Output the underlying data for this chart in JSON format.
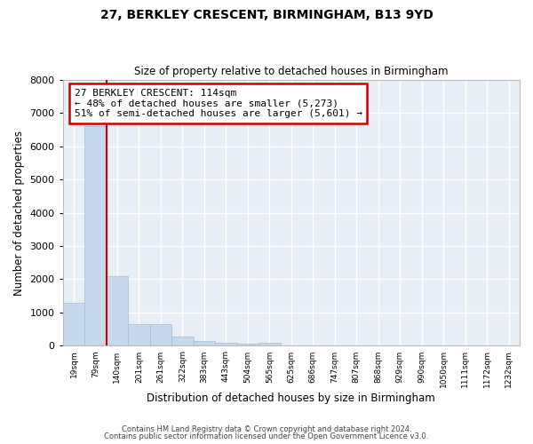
{
  "title_line1": "27, BERKLEY CRESCENT, BIRMINGHAM, B13 9YD",
  "title_line2": "Size of property relative to detached houses in Birmingham",
  "xlabel": "Distribution of detached houses by size in Birmingham",
  "ylabel": "Number of detached properties",
  "footer_line1": "Contains HM Land Registry data © Crown copyright and database right 2024.",
  "footer_line2": "Contains public sector information licensed under the Open Government Licence v3.0.",
  "bin_labels": [
    "19sqm",
    "79sqm",
    "140sqm",
    "201sqm",
    "261sqm",
    "322sqm",
    "383sqm",
    "443sqm",
    "504sqm",
    "565sqm",
    "625sqm",
    "686sqm",
    "747sqm",
    "807sqm",
    "868sqm",
    "929sqm",
    "990sqm",
    "1050sqm",
    "1111sqm",
    "1172sqm",
    "1232sqm"
  ],
  "bar_values": [
    1300,
    6600,
    2080,
    640,
    640,
    290,
    140,
    100,
    60,
    80,
    0,
    0,
    0,
    0,
    0,
    0,
    0,
    0,
    0,
    0,
    0
  ],
  "bar_color": "#c5d8ec",
  "bar_edge_color": "#a0bcd8",
  "vline_color": "#cc0000",
  "ylim": [
    0,
    8000
  ],
  "yticks": [
    0,
    1000,
    2000,
    3000,
    4000,
    5000,
    6000,
    7000,
    8000
  ],
  "bg_color": "#e8eef6",
  "grid_color": "#ffffff",
  "fig_bg_color": "#ffffff",
  "annot_box_color": "#ffffff",
  "annot_box_edge_color": "#cc0000",
  "property_label": "27 BERKLEY CRESCENT: 114sqm",
  "annot_line2": "← 48% of detached houses are smaller (5,273)",
  "annot_line3": "51% of semi-detached houses are larger (5,601) →"
}
